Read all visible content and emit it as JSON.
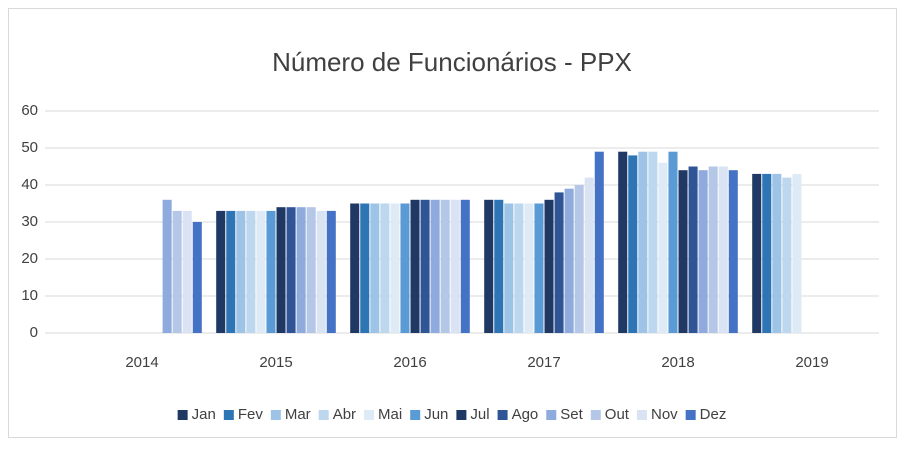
{
  "chart_data": {
    "type": "bar",
    "title": "Número de Funcionários - PPX",
    "categories": [
      "2014",
      "2015",
      "2016",
      "2017",
      "2018",
      "2019"
    ],
    "series": [
      {
        "name": "Jan",
        "color": "#1f3864",
        "values": [
          null,
          33,
          35,
          36,
          49,
          43
        ]
      },
      {
        "name": "Fev",
        "color": "#2e75b6",
        "values": [
          null,
          33,
          35,
          36,
          48,
          43
        ]
      },
      {
        "name": "Mar",
        "color": "#9dc3e6",
        "values": [
          null,
          33,
          35,
          35,
          49,
          43
        ]
      },
      {
        "name": "Abr",
        "color": "#bdd7ee",
        "values": [
          null,
          33,
          35,
          35,
          49,
          42
        ]
      },
      {
        "name": "Mai",
        "color": "#deebf7",
        "values": [
          null,
          33,
          35,
          35,
          46,
          43
        ]
      },
      {
        "name": "Jun",
        "color": "#5b9bd5",
        "values": [
          null,
          33,
          35,
          35,
          49,
          null
        ]
      },
      {
        "name": "Jul",
        "color": "#203864",
        "values": [
          null,
          34,
          36,
          36,
          44,
          null
        ]
      },
      {
        "name": "Ago",
        "color": "#2f5597",
        "values": [
          null,
          34,
          36,
          38,
          45,
          null
        ]
      },
      {
        "name": "Set",
        "color": "#8faadc",
        "values": [
          36,
          34,
          36,
          39,
          44,
          null
        ]
      },
      {
        "name": "Out",
        "color": "#b4c7e7",
        "values": [
          33,
          34,
          36,
          40,
          45,
          null
        ]
      },
      {
        "name": "Nov",
        "color": "#dae3f3",
        "values": [
          33,
          33,
          36,
          42,
          45,
          null
        ]
      },
      {
        "name": "Dez",
        "color": "#4472c4",
        "values": [
          30,
          33,
          36,
          49,
          44,
          null
        ]
      }
    ],
    "ylim": [
      0,
      60
    ],
    "yticks": [
      0,
      10,
      20,
      30,
      40,
      50,
      60
    ],
    "grid": true,
    "legend": "bottom"
  }
}
